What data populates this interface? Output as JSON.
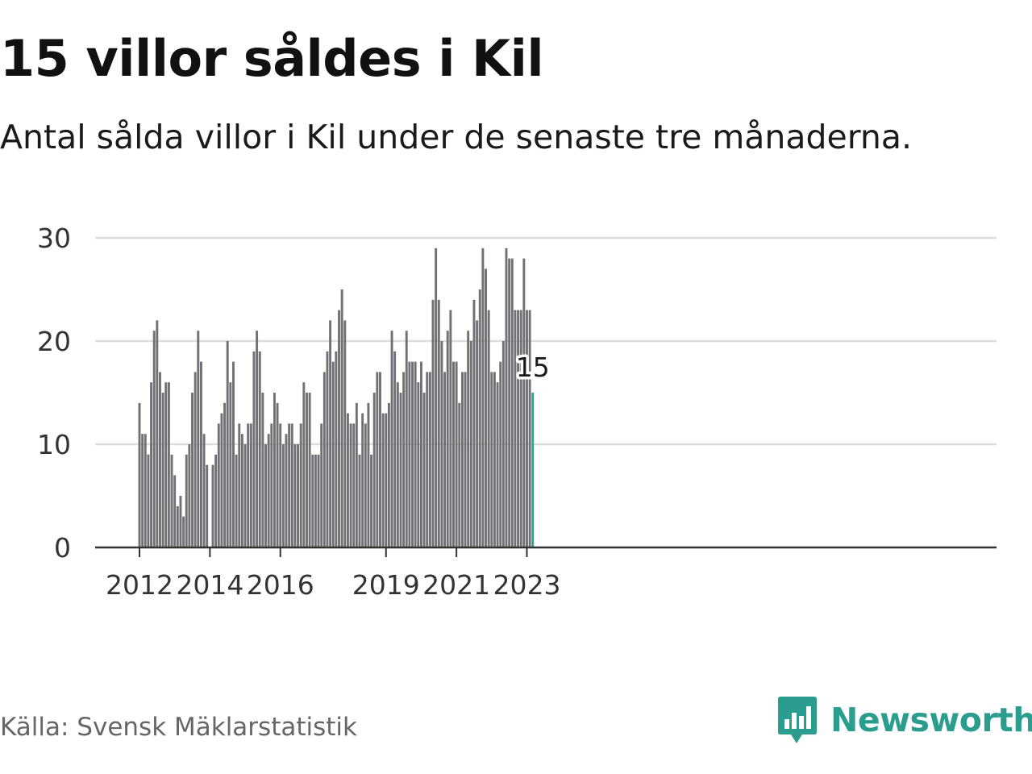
{
  "header": {
    "title": "15 villor såldes i Kil",
    "subtitle": "Antal sålda villor i Kil under de senaste tre månaderna."
  },
  "footer": {
    "source": "Källa: Svensk Mäklarstatistik",
    "brand": "Newsworthy"
  },
  "colors": {
    "bar": "#717075",
    "highlight": "#26a69a",
    "grid": "#dddddd",
    "axis": "#333333",
    "brand": "#2a9d8f"
  },
  "icons": {
    "brand_logo": "bar-chart-speech-bubble-icon"
  },
  "chart_data": {
    "type": "bar",
    "title": "15 villor såldes i Kil",
    "subtitle": "Antal sålda villor i Kil under de senaste tre månaderna.",
    "xlabel": "",
    "ylabel": "",
    "ylim": [
      0,
      30
    ],
    "yticks": [
      0,
      10,
      20,
      30
    ],
    "grid": true,
    "start": "2012-01",
    "frequency": "monthly",
    "xtick_labels": [
      {
        "label": "2012",
        "month": "2012-01"
      },
      {
        "label": "2014",
        "month": "2014-01"
      },
      {
        "label": "2016",
        "month": "2016-01"
      },
      {
        "label": "2019",
        "month": "2019-01"
      },
      {
        "label": "2021",
        "month": "2021-01"
      },
      {
        "label": "2023",
        "month": "2023-01"
      }
    ],
    "values": [
      14,
      11,
      11,
      9,
      16,
      21,
      22,
      17,
      15,
      16,
      16,
      9,
      7,
      4,
      5,
      3,
      9,
      10,
      15,
      17,
      21,
      18,
      11,
      8,
      0,
      8,
      9,
      12,
      13,
      14,
      20,
      16,
      18,
      9,
      12,
      11,
      10,
      12,
      12,
      19,
      21,
      19,
      15,
      10,
      11,
      12,
      15,
      14,
      12,
      10,
      11,
      12,
      12,
      10,
      10,
      12,
      16,
      15,
      15,
      9,
      9,
      9,
      12,
      17,
      19,
      22,
      18,
      19,
      23,
      25,
      22,
      13,
      12,
      12,
      14,
      9,
      13,
      12,
      14,
      9,
      15,
      17,
      17,
      13,
      13,
      14,
      21,
      19,
      16,
      15,
      17,
      21,
      18,
      18,
      18,
      16,
      18,
      15,
      17,
      17,
      24,
      29,
      24,
      20,
      17,
      21,
      23,
      18,
      18,
      14,
      17,
      17,
      21,
      20,
      24,
      22,
      25,
      29,
      27,
      23,
      17,
      17,
      16,
      18,
      20,
      29,
      28,
      28,
      23,
      23,
      23,
      28,
      23,
      23,
      15
    ],
    "highlight": {
      "index": 134,
      "value": 15,
      "label": "15"
    }
  }
}
